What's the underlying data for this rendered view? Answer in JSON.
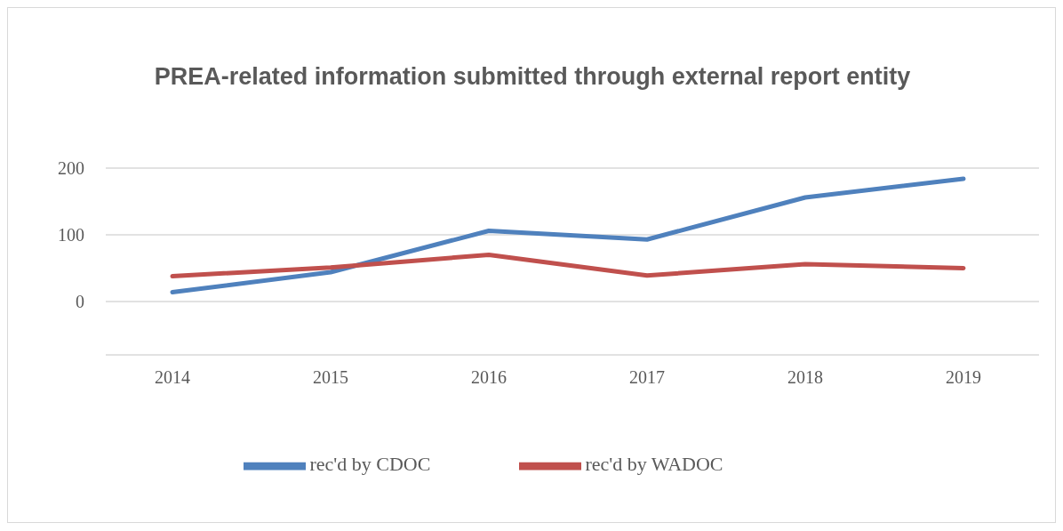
{
  "chart_data": {
    "type": "line",
    "title": "PREA-related information submitted through external report entity",
    "categories": [
      "2014",
      "2015",
      "2016",
      "2017",
      "2018",
      "2019"
    ],
    "series": [
      {
        "name": "rec'd by CDOC",
        "color": "#4f81bd",
        "values": [
          14,
          44,
          106,
          93,
          156,
          184
        ]
      },
      {
        "name": "rec'd by WADOC",
        "color": "#c0504d",
        "values": [
          38,
          51,
          70,
          39,
          56,
          50
        ]
      }
    ],
    "ylim": [
      -80,
      200
    ],
    "yticks": [
      0,
      100,
      200
    ],
    "grid": "y",
    "legend": "bottom",
    "marker": "none",
    "line_style": "solid"
  }
}
